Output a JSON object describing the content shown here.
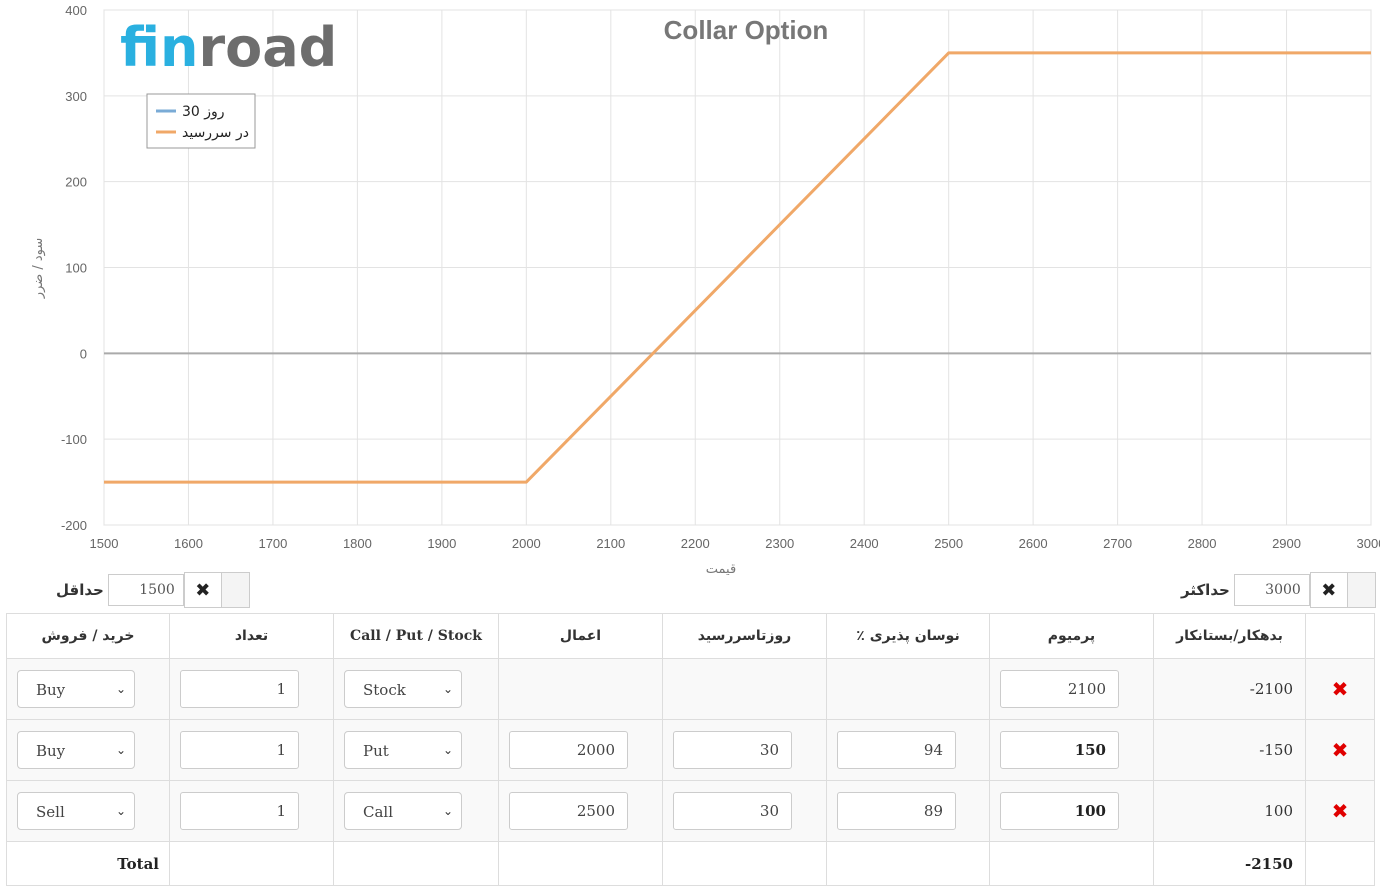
{
  "chart_data": {
    "type": "line",
    "title": "Collar Option",
    "xlabel": "قیمت",
    "ylabel": "سود / ضرر",
    "xlim": [
      1500,
      3000
    ],
    "ylim": [
      -200,
      400
    ],
    "x_ticks": [
      "1500",
      "1600",
      "1700",
      "1800",
      "1900",
      "2000",
      "2100",
      "2200",
      "2300",
      "2400",
      "2500",
      "2600",
      "2700",
      "2800",
      "2900",
      "3000"
    ],
    "y_ticks": [
      "400",
      "300",
      "200",
      "100",
      "0",
      "-100",
      "-200"
    ],
    "legend_position": "top-left",
    "grid": true,
    "series": [
      {
        "name": "روز 30",
        "color": "#7aabd6",
        "points": []
      },
      {
        "name": "در سررسید",
        "color": "#f0a868",
        "points": [
          [
            1500,
            -150
          ],
          [
            2000,
            -150
          ],
          [
            2500,
            350
          ],
          [
            3000,
            350
          ]
        ]
      }
    ]
  },
  "logo": {
    "part1": "fin",
    "part2": "road",
    "color1": "#2ab0e0",
    "color2": "#6d6d6d"
  },
  "range": {
    "min_label": "حداقل",
    "min_value": "1500",
    "max_label": "حداکثر",
    "max_value": "3000",
    "clear_icon": "✖"
  },
  "table": {
    "headers": [
      "خرید / فروش",
      "تعداد",
      "Call / Put / Stock",
      "اعمال",
      "روزتاسررسید",
      "٪ نوسان پذیری",
      "پرمیوم",
      "بدهکار/بستانکار",
      ""
    ],
    "rows": [
      {
        "side": "Buy",
        "qty": "1",
        "type": "Stock",
        "strike": "",
        "days": "",
        "vol": "",
        "premium": "2100",
        "premium_bold": false,
        "credit": "-2100"
      },
      {
        "side": "Buy",
        "qty": "1",
        "type": "Put",
        "strike": "2000",
        "days": "30",
        "vol": "94",
        "premium": "150",
        "premium_bold": true,
        "credit": "-150"
      },
      {
        "side": "Sell",
        "qty": "1",
        "type": "Call",
        "strike": "2500",
        "days": "30",
        "vol": "89",
        "premium": "100",
        "premium_bold": true,
        "credit": "100"
      }
    ],
    "total_label": "Total",
    "total_value": "-2150",
    "delete_icon": "✖"
  }
}
